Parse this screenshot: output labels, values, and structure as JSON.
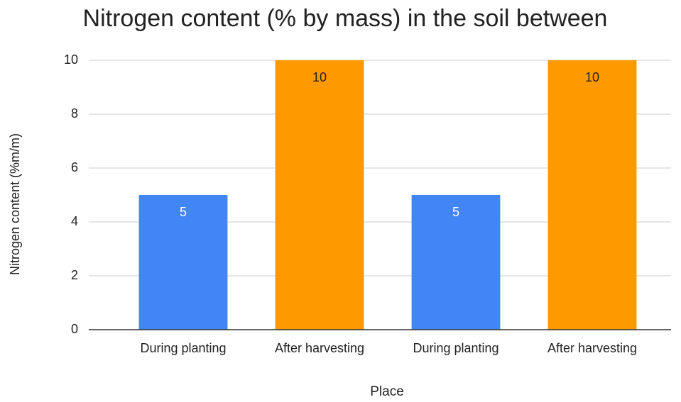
{
  "chart_data": {
    "type": "bar",
    "title": "Nitrogen content (% by mass) in the soil between",
    "x_label": "Place",
    "y_label": "Nitrogen content (%m/m)",
    "categories": [
      "During planting",
      "After harvesting",
      "During planting",
      "After harvesting"
    ],
    "values": [
      5,
      10,
      5,
      10
    ],
    "colors": [
      "#4285f4",
      "#ff9900",
      "#4285f4",
      "#ff9900"
    ],
    "value_label_colors": [
      "#ffffff",
      "#222222",
      "#ffffff",
      "#222222"
    ],
    "ylim": [
      0,
      10
    ],
    "yticks": [
      0,
      2,
      4,
      6,
      8,
      10
    ],
    "grid": true
  }
}
